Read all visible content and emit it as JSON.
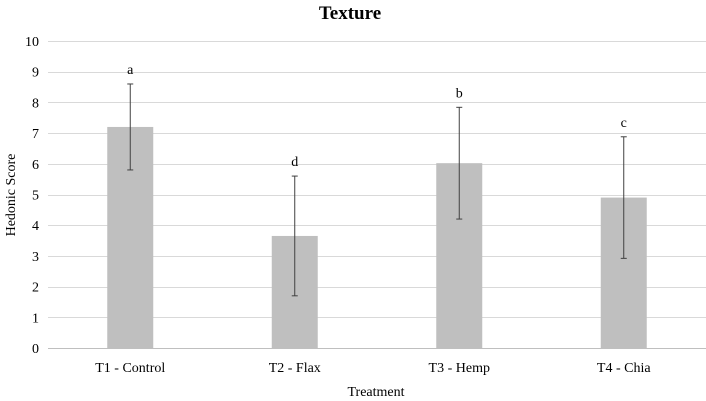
{
  "chart_data": {
    "type": "bar",
    "title": "Texture",
    "xlabel": "Treatment",
    "ylabel": "Hedonic Score",
    "ylim": [
      0,
      10
    ],
    "yticks": [
      0,
      1,
      2,
      3,
      4,
      5,
      6,
      7,
      8,
      9,
      10
    ],
    "grid": true,
    "categories": [
      "T1 - Control",
      "T2 - Flax",
      "T3 - Hemp",
      "T4 - Chia"
    ],
    "values": [
      7.2,
      3.65,
      6.02,
      4.9
    ],
    "error_bars": [
      1.4,
      1.95,
      1.82,
      1.98
    ],
    "significance_letters": [
      "a",
      "d",
      "b",
      "c"
    ],
    "bar_color": "#bfbfbf",
    "error_bar_color": "#404040",
    "grid_color": "#d9d9d9"
  }
}
